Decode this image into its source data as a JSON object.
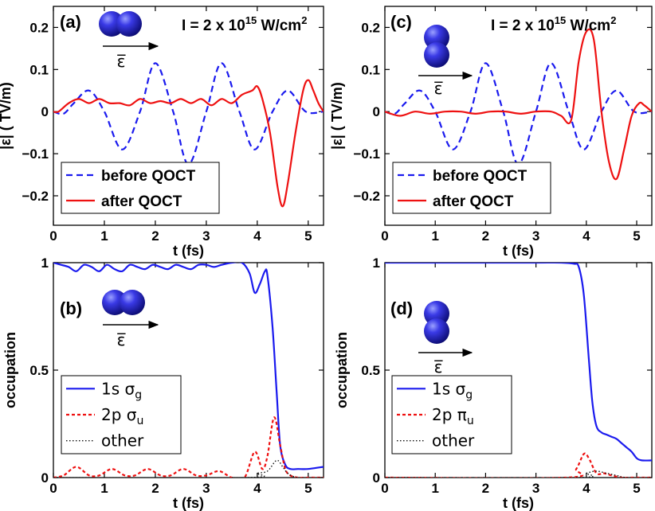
{
  "colors": {
    "blue": "#1a1aee",
    "red": "#ee1111",
    "black": "#111111"
  },
  "chart_data": [
    {
      "id": "a",
      "type": "line",
      "panel_label": "(a)",
      "intensity": {
        "prefix": "I = 2 x 10",
        "exponent": "15",
        "unit": " W/cm",
        "unit_exp": "2"
      },
      "molecule": "horizontal",
      "field_symbol": "ε̅",
      "xlabel": "t (fs)",
      "ylabel": "|ε|  ( TV/m)",
      "xlim": [
        0,
        5.3
      ],
      "ylim": [
        -0.27,
        0.25
      ],
      "xticks": [
        0,
        1,
        2,
        3,
        4,
        5
      ],
      "yticks": [
        -0.2,
        -0.1,
        0,
        0.1,
        0.2
      ],
      "ytick_labels": [
        "−0.2",
        "−0.1",
        "0",
        "0.1",
        "0.2"
      ],
      "legend_position": "lower-left",
      "series": [
        {
          "name": "before QOCT",
          "color": "#1a1aee",
          "dash": "8,5",
          "x": [
            0,
            0.2,
            0.4,
            0.7,
            1.0,
            1.35,
            1.7,
            2.0,
            2.35,
            2.65,
            3.0,
            3.3,
            3.65,
            3.95,
            4.3,
            4.6,
            4.95,
            5.3
          ],
          "y": [
            0.0,
            -0.005,
            0.02,
            0.05,
            0.0,
            -0.09,
            0.0,
            0.115,
            0.0,
            -0.125,
            0.0,
            0.115,
            0.0,
            -0.09,
            0.0,
            0.05,
            0.0,
            0.0
          ]
        },
        {
          "name": "after QOCT",
          "color": "#ee1111",
          "dash": "",
          "x": [
            0,
            0.1,
            0.3,
            0.5,
            0.7,
            0.9,
            1.1,
            1.3,
            1.5,
            1.7,
            1.9,
            2.1,
            2.3,
            2.5,
            2.7,
            2.9,
            3.1,
            3.3,
            3.5,
            3.7,
            3.9,
            4.0,
            4.1,
            4.25,
            4.4,
            4.5,
            4.6,
            4.75,
            4.9,
            5.0,
            5.1,
            5.2,
            5.3
          ],
          "y": [
            0.0,
            0.0,
            0.02,
            0.03,
            0.02,
            0.03,
            0.02,
            0.02,
            0.015,
            0.03,
            0.02,
            0.025,
            0.02,
            0.03,
            0.02,
            0.03,
            0.015,
            0.03,
            0.02,
            0.04,
            0.05,
            0.06,
            0.03,
            -0.05,
            -0.18,
            -0.225,
            -0.17,
            -0.05,
            0.05,
            0.075,
            0.05,
            0.02,
            0.0
          ]
        }
      ]
    },
    {
      "id": "c",
      "type": "line",
      "panel_label": "(c)",
      "intensity": {
        "prefix": "I = 2 x 10",
        "exponent": "15",
        "unit": " W/cm",
        "unit_exp": "2"
      },
      "molecule": "vertical",
      "field_symbol": "ε̅",
      "xlabel": "t (fs)",
      "ylabel": "|ε|  ( TV/m)",
      "xlim": [
        0,
        5.3
      ],
      "ylim": [
        -0.27,
        0.25
      ],
      "xticks": [
        0,
        1,
        2,
        3,
        4,
        5
      ],
      "yticks": [
        -0.2,
        -0.1,
        0,
        0.1,
        0.2
      ],
      "ytick_labels": [
        "−0.2",
        "−0.1",
        "0",
        "0.1",
        "0.2"
      ],
      "legend_position": "lower-left",
      "series": [
        {
          "name": "before QOCT",
          "color": "#1a1aee",
          "dash": "8,5",
          "x": [
            0,
            0.2,
            0.4,
            0.7,
            1.0,
            1.35,
            1.7,
            2.0,
            2.35,
            2.65,
            3.0,
            3.3,
            3.65,
            3.95,
            4.3,
            4.6,
            4.95,
            5.3
          ],
          "y": [
            0.0,
            -0.005,
            0.02,
            0.05,
            0.0,
            -0.09,
            0.0,
            0.115,
            0.0,
            -0.125,
            0.0,
            0.115,
            0.0,
            -0.09,
            0.0,
            0.05,
            0.0,
            0.0
          ]
        },
        {
          "name": "after QOCT",
          "color": "#ee1111",
          "dash": "",
          "x": [
            0,
            0.3,
            0.6,
            0.9,
            1.2,
            1.5,
            1.8,
            2.1,
            2.4,
            2.7,
            3.0,
            3.3,
            3.5,
            3.7,
            3.85,
            4.0,
            4.15,
            4.3,
            4.45,
            4.6,
            4.75,
            4.9,
            5.05,
            5.15,
            5.3
          ],
          "y": [
            0.0,
            -0.01,
            0.0,
            -0.005,
            0.0,
            0.0,
            -0.005,
            0.0,
            0.0,
            -0.005,
            0.0,
            0.0,
            -0.01,
            -0.02,
            0.12,
            0.19,
            0.17,
            0.0,
            -0.12,
            -0.16,
            -0.09,
            -0.01,
            0.02,
            0.015,
            0.0
          ]
        }
      ]
    },
    {
      "id": "b",
      "type": "line",
      "panel_label": "(b)",
      "molecule": "horizontal",
      "field_symbol": "ε̅",
      "xlabel": "t (fs)",
      "ylabel": "occupation",
      "xlim": [
        0,
        5.3
      ],
      "ylim": [
        0,
        1.0
      ],
      "xticks": [
        0,
        1,
        2,
        3,
        4,
        5
      ],
      "yticks": [
        0,
        0.5,
        1
      ],
      "ytick_labels": [
        "0",
        "0.5",
        "1"
      ],
      "legend_position": "lower-left",
      "series": [
        {
          "name": "1s",
          "subscript_label": "σ",
          "subscript": "g",
          "color": "#1a1aee",
          "dash": "",
          "x": [
            0,
            0.15,
            0.3,
            0.45,
            0.6,
            0.75,
            0.9,
            1.05,
            1.2,
            1.35,
            1.5,
            1.65,
            1.8,
            1.95,
            2.1,
            2.25,
            2.4,
            2.55,
            2.7,
            2.85,
            3.0,
            3.15,
            3.3,
            3.5,
            3.7,
            3.85,
            3.95,
            4.05,
            4.15,
            4.2,
            4.3,
            4.38,
            4.45,
            4.55,
            4.65,
            4.8,
            5.0,
            5.3
          ],
          "y": [
            1.0,
            0.99,
            0.98,
            0.96,
            0.99,
            0.98,
            0.96,
            0.99,
            0.97,
            0.96,
            0.99,
            0.98,
            0.97,
            0.99,
            0.98,
            0.97,
            0.99,
            0.98,
            0.97,
            0.99,
            0.99,
            0.98,
            0.99,
            1.0,
            1.0,
            0.95,
            0.86,
            0.9,
            0.96,
            0.94,
            0.7,
            0.4,
            0.15,
            0.06,
            0.04,
            0.04,
            0.04,
            0.05
          ]
        },
        {
          "name": "2p",
          "subscript_label": "σ",
          "subscript": "u",
          "color": "#ee1111",
          "dash": "4,3",
          "x": [
            0,
            0.2,
            0.45,
            0.7,
            0.9,
            1.15,
            1.4,
            1.6,
            1.85,
            2.1,
            2.3,
            2.55,
            2.8,
            3.0,
            3.25,
            3.5,
            3.75,
            3.95,
            4.1,
            4.2,
            4.33,
            4.45,
            4.55,
            4.65,
            4.8,
            5.0,
            5.3
          ],
          "y": [
            0.0,
            0.01,
            0.05,
            0.01,
            0.01,
            0.04,
            0.01,
            0.01,
            0.04,
            0.01,
            0.01,
            0.04,
            0.01,
            0.01,
            0.03,
            0.0,
            0.0,
            0.12,
            0.04,
            0.1,
            0.28,
            0.15,
            0.04,
            0.01,
            0.0,
            0.0,
            0.0
          ]
        },
        {
          "name": "other",
          "color": "#111111",
          "dash": "1.5,2.5",
          "x": [
            0,
            3.8,
            4.0,
            4.2,
            4.38,
            4.5,
            4.6,
            4.8,
            5.3
          ],
          "y": [
            0.0,
            0.0,
            0.02,
            0.03,
            0.08,
            0.05,
            0.02,
            0.0,
            0.0
          ]
        }
      ]
    },
    {
      "id": "d",
      "type": "line",
      "panel_label": "(d)",
      "molecule": "vertical",
      "field_symbol": "ε̅",
      "xlabel": "t (fs)",
      "ylabel": "occupation",
      "xlim": [
        0,
        5.3
      ],
      "ylim": [
        0,
        1.0
      ],
      "xticks": [
        0,
        1,
        2,
        3,
        4,
        5
      ],
      "yticks": [
        0,
        0.5,
        1
      ],
      "ytick_labels": [
        "0",
        "0.5",
        "1"
      ],
      "legend_position": "lower-left",
      "series": [
        {
          "name": "1s",
          "subscript_label": "σ",
          "subscript": "g",
          "color": "#1a1aee",
          "dash": "",
          "x": [
            0,
            1.0,
            2.0,
            3.0,
            3.5,
            3.75,
            3.85,
            3.95,
            4.05,
            4.12,
            4.2,
            4.3,
            4.4,
            4.5,
            4.6,
            4.7,
            4.8,
            4.9,
            5.0,
            5.1,
            5.3
          ],
          "y": [
            1.0,
            1.0,
            1.0,
            1.0,
            1.0,
            0.995,
            0.98,
            0.85,
            0.55,
            0.35,
            0.24,
            0.21,
            0.2,
            0.19,
            0.18,
            0.16,
            0.14,
            0.12,
            0.09,
            0.08,
            0.08
          ]
        },
        {
          "name": "2p",
          "subscript_label": "π",
          "subscript": "u",
          "color": "#ee1111",
          "dash": "4,3",
          "x": [
            0,
            3.6,
            3.8,
            3.95,
            4.05,
            4.2,
            4.35,
            4.5,
            4.7,
            4.9,
            5.3
          ],
          "y": [
            0.0,
            0.0,
            0.04,
            0.11,
            0.09,
            0.02,
            0.02,
            0.01,
            0.0,
            0.0,
            0.0
          ]
        },
        {
          "name": "other",
          "color": "#111111",
          "dash": "1.5,2.5",
          "x": [
            0,
            3.8,
            4.0,
            4.2,
            4.4,
            4.6,
            4.8,
            5.3
          ],
          "y": [
            0.0,
            0.0,
            0.02,
            0.03,
            0.02,
            0.01,
            0.0,
            0.0
          ]
        }
      ]
    }
  ]
}
